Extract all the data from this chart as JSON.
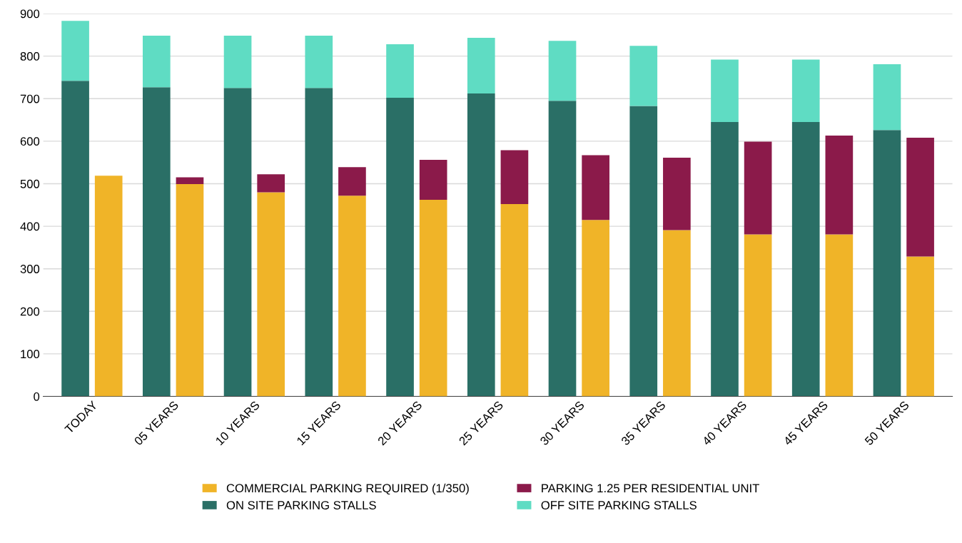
{
  "chart_data": [
    {
      "type": "bar",
      "stacked": true,
      "categories": [
        "TODAY",
        "05 YEARS",
        "10 YEARS",
        "15 YEARS",
        "20 YEARS",
        "25 YEARS",
        "30 YEARS",
        "35 YEARS",
        "40 YEARS",
        "45 YEARS",
        "50 YEARS"
      ],
      "series": [
        {
          "name": "ON SITE PARKING STALLS",
          "color": "#2a6f66",
          "values": [
            742,
            727,
            725,
            725,
            702,
            712,
            695,
            683,
            645,
            645,
            626
          ]
        },
        {
          "name": "OFF SITE PARKING STALLS",
          "color": "#5fdcc3",
          "values": [
            141,
            121,
            123,
            123,
            126,
            131,
            141,
            141,
            147,
            147,
            155
          ]
        }
      ],
      "ylim": [
        0,
        900
      ],
      "yticks": [
        0,
        100,
        200,
        300,
        400,
        500,
        600,
        700,
        800,
        900
      ],
      "grid": "y",
      "legend": "bottom"
    },
    {
      "type": "bar",
      "stacked": true,
      "categories": [
        null,
        null,
        null,
        null,
        null,
        null,
        null,
        null,
        null,
        null,
        null
      ],
      "series": [
        {
          "name": "COMMERCIAL PARKING REQUIRED (1/350)",
          "color": "#f0b428",
          "values": [
            519,
            499,
            480,
            472,
            462,
            452,
            415,
            391,
            381,
            381,
            329
          ]
        },
        {
          "name": "PARKING 1.25 PER RESIDENTIAL UNIT",
          "color": "#8b1a4a",
          "values": [
            0,
            16,
            42,
            67,
            94,
            127,
            152,
            170,
            218,
            232,
            279
          ]
        }
      ],
      "ylim": [
        0,
        900
      ],
      "yticks": [
        0,
        100,
        200,
        300,
        400,
        500,
        600,
        700,
        800,
        900
      ],
      "tick_labels": false,
      "legend": "bottom"
    }
  ]
}
